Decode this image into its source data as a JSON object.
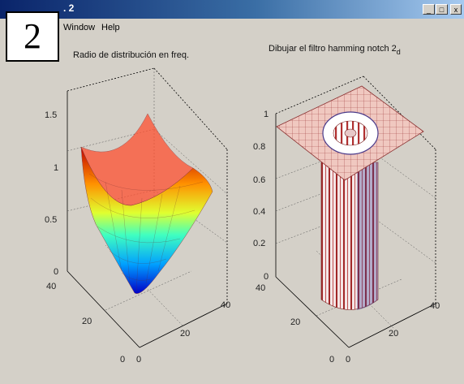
{
  "window": {
    "title_fragment": ". 2",
    "minimize_glyph": "_",
    "maximize_glyph": "□",
    "close_glyph": "x"
  },
  "menu": {
    "items": [
      "Window",
      "Help"
    ]
  },
  "badge": {
    "number": "2"
  },
  "colors": {
    "background": "#d4d0c8",
    "titlebar": "#0a246a",
    "badge_bg": "#ffffff"
  },
  "chart_data": [
    {
      "type": "surface",
      "title": "Radio de distribución en freq.",
      "x_ticks": [
        "0",
        "20",
        "40"
      ],
      "y_ticks": [
        "0",
        "20",
        "40"
      ],
      "z_ticks": [
        "0",
        "0.5",
        "1",
        "1.5"
      ],
      "zlim": [
        0,
        1.5
      ],
      "grid": true
    },
    {
      "type": "surface",
      "title": "Dibujar el filtro hamming notch 2",
      "title_subscript": "d",
      "x_ticks": [
        "0",
        "20",
        "40"
      ],
      "y_ticks": [
        "0",
        "20",
        "40"
      ],
      "z_ticks": [
        "0",
        "0.2",
        "0.4",
        "0.6",
        "0.8",
        "1"
      ],
      "zlim": [
        0,
        1
      ],
      "grid": true
    }
  ]
}
